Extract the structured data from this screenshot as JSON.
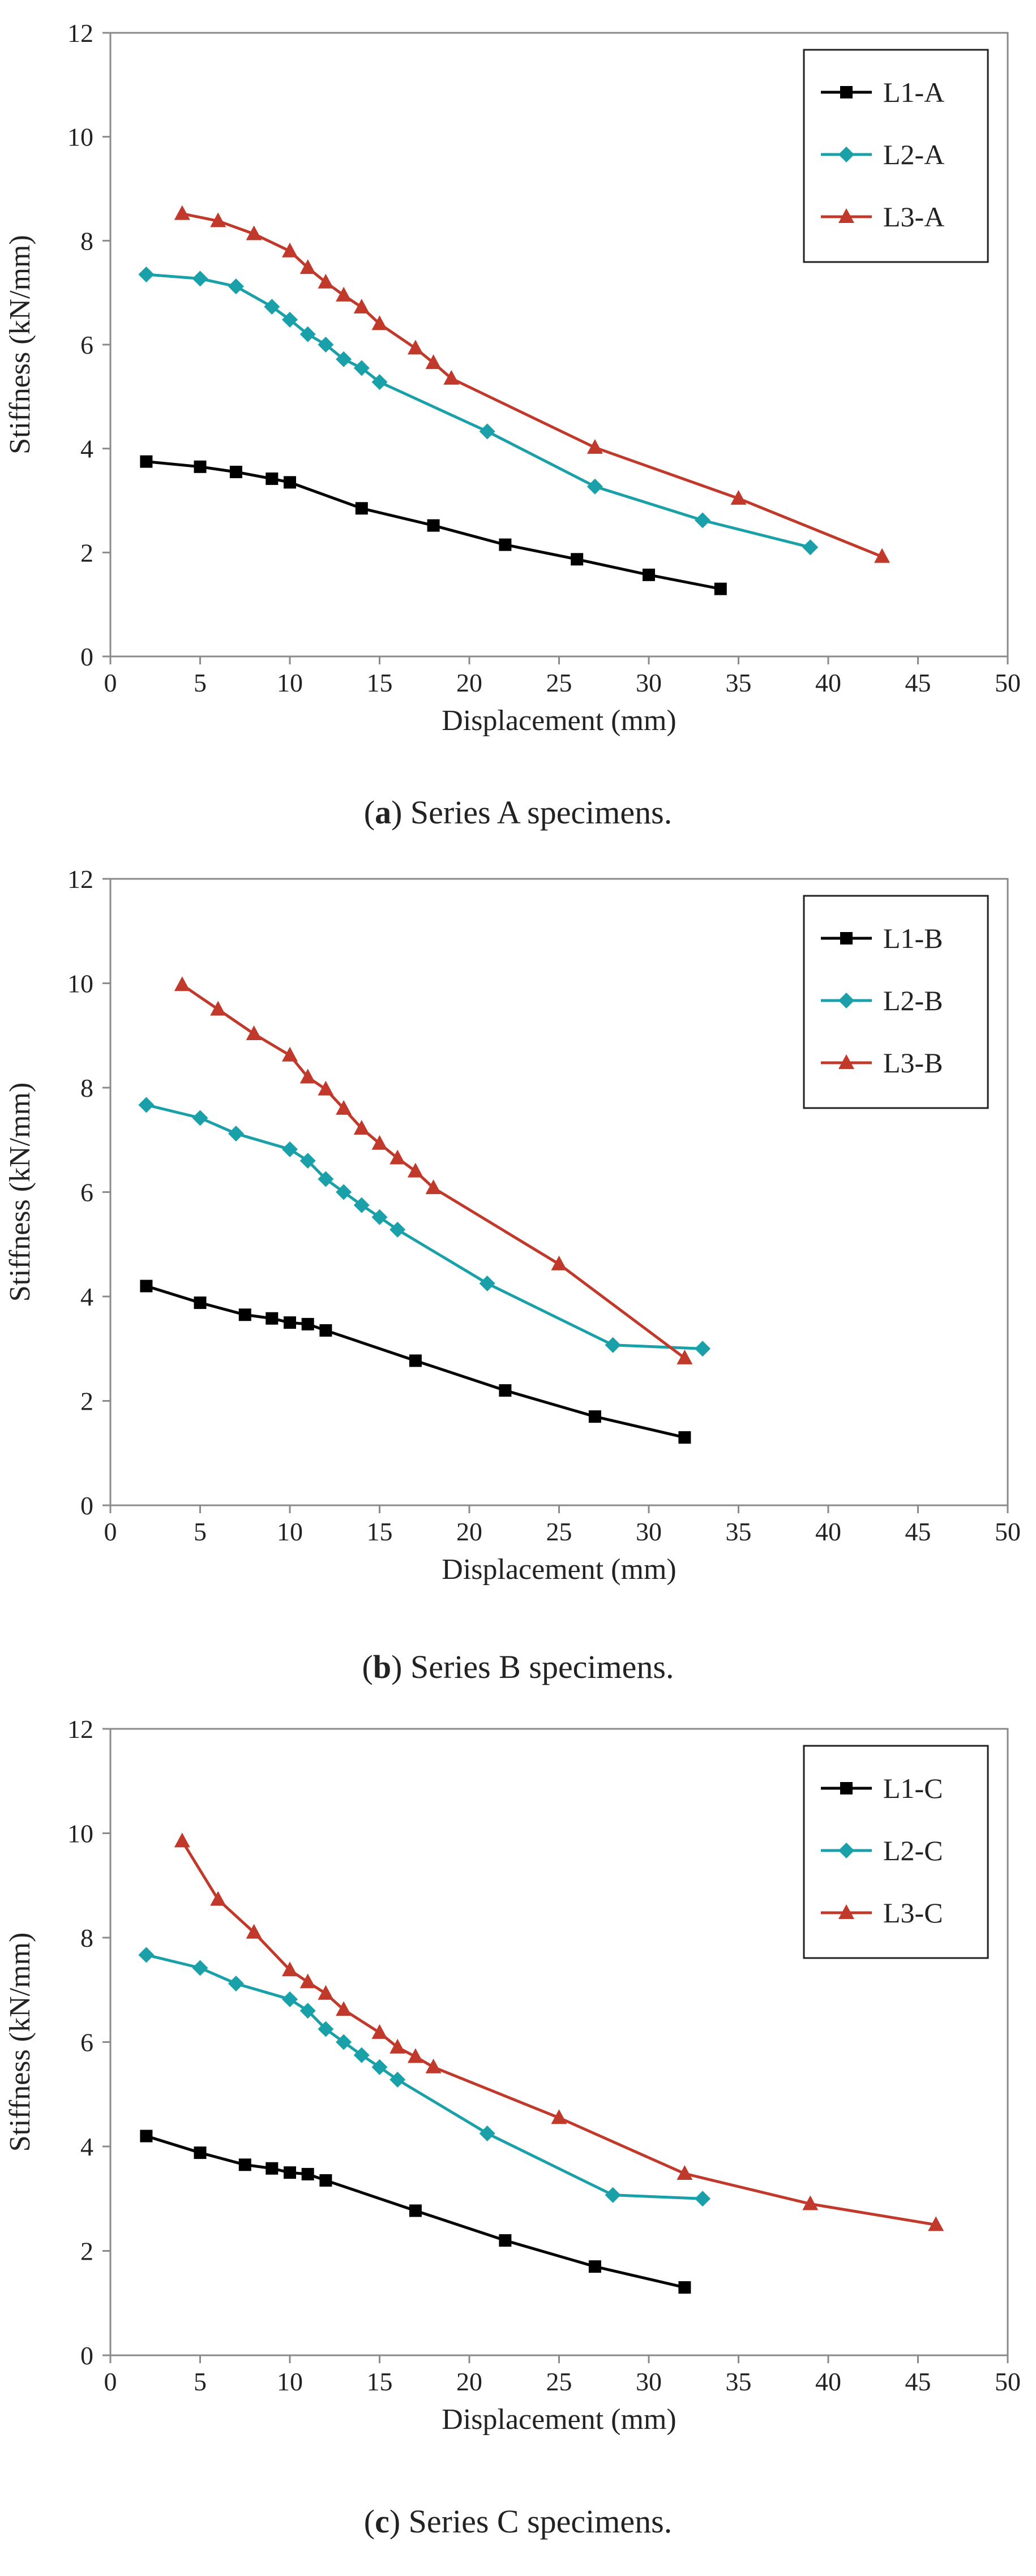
{
  "chart_data": [
    {
      "type": "line",
      "caption_letter": "a",
      "caption_text": ") Series A specimens.",
      "xlabel": "Displacement (mm)",
      "ylabel": "Stiffness (kN/mm)",
      "xlim": [
        0,
        50
      ],
      "ylim": [
        0,
        12
      ],
      "xticks": [
        0,
        5,
        10,
        15,
        20,
        25,
        30,
        35,
        40,
        45,
        50
      ],
      "yticks": [
        0,
        2,
        4,
        6,
        8,
        10,
        12
      ],
      "grid": false,
      "legend_position": "top-right",
      "series": [
        {
          "name": "L1-A",
          "color": "#000000",
          "marker": "square",
          "x": [
            2,
            5,
            7,
            9,
            10,
            14,
            18,
            22,
            26,
            30,
            34
          ],
          "y": [
            3.75,
            3.65,
            3.55,
            3.42,
            3.35,
            2.85,
            2.52,
            2.15,
            1.87,
            1.57,
            1.3
          ]
        },
        {
          "name": "L2-A",
          "color": "#1aa0a8",
          "marker": "diamond",
          "x": [
            2,
            5,
            7,
            9,
            10,
            11,
            12,
            13,
            14,
            15,
            21,
            27,
            33,
            39
          ],
          "y": [
            7.35,
            7.27,
            7.12,
            6.73,
            6.48,
            6.2,
            6.0,
            5.72,
            5.55,
            5.28,
            4.33,
            3.27,
            2.62,
            2.1
          ]
        },
        {
          "name": "L3-A",
          "color": "#c0392b",
          "marker": "triangle",
          "x": [
            4,
            6,
            8,
            10,
            11,
            12,
            13,
            14,
            15,
            17,
            18,
            19,
            27,
            35,
            43
          ],
          "y": [
            8.52,
            8.38,
            8.13,
            7.8,
            7.48,
            7.2,
            6.95,
            6.72,
            6.4,
            5.93,
            5.65,
            5.35,
            4.02,
            3.04,
            1.92
          ]
        }
      ]
    },
    {
      "type": "line",
      "caption_letter": "b",
      "caption_text": ") Series B specimens.",
      "xlabel": "Displacement (mm)",
      "ylabel": "Stiffness (kN/mm)",
      "xlim": [
        0,
        50
      ],
      "ylim": [
        0,
        12
      ],
      "xticks": [
        0,
        5,
        10,
        15,
        20,
        25,
        30,
        35,
        40,
        45,
        50
      ],
      "yticks": [
        0,
        2,
        4,
        6,
        8,
        10,
        12
      ],
      "grid": false,
      "legend_position": "top-right",
      "series": [
        {
          "name": "L1-B",
          "color": "#000000",
          "marker": "square",
          "x": [
            2,
            5,
            7.5,
            9,
            10,
            11,
            12,
            17,
            22,
            27,
            32
          ],
          "y": [
            4.2,
            3.88,
            3.65,
            3.58,
            3.5,
            3.47,
            3.35,
            2.77,
            2.2,
            1.7,
            1.3
          ]
        },
        {
          "name": "L2-B",
          "color": "#1aa0a8",
          "marker": "diamond",
          "x": [
            2,
            5,
            7,
            10,
            11,
            12,
            13,
            14,
            15,
            16,
            21,
            28,
            33
          ],
          "y": [
            7.67,
            7.42,
            7.12,
            6.82,
            6.6,
            6.25,
            6.0,
            5.75,
            5.52,
            5.28,
            4.25,
            3.07,
            3.0
          ]
        },
        {
          "name": "L3-B",
          "color": "#c0392b",
          "marker": "triangle",
          "x": [
            4,
            6,
            8,
            10,
            11,
            12,
            13,
            14,
            15,
            16,
            17,
            18,
            25,
            32
          ],
          "y": [
            9.97,
            9.5,
            9.03,
            8.62,
            8.2,
            7.97,
            7.6,
            7.22,
            6.93,
            6.65,
            6.4,
            6.08,
            4.62,
            2.82
          ]
        }
      ]
    },
    {
      "type": "line",
      "caption_letter": "c",
      "caption_text": ") Series C specimens.",
      "xlabel": "Displacement (mm)",
      "ylabel": "Stiffness (kN/mm)",
      "xlim": [
        0,
        50
      ],
      "ylim": [
        0,
        12
      ],
      "xticks": [
        0,
        5,
        10,
        15,
        20,
        25,
        30,
        35,
        40,
        45,
        50
      ],
      "yticks": [
        0,
        2,
        4,
        6,
        8,
        10,
        12
      ],
      "grid": false,
      "legend_position": "top-right",
      "series": [
        {
          "name": "L1-C",
          "color": "#000000",
          "marker": "square",
          "x": [
            2,
            5,
            7.5,
            9,
            10,
            11,
            12,
            17,
            22,
            27,
            32
          ],
          "y": [
            4.2,
            3.88,
            3.65,
            3.58,
            3.5,
            3.47,
            3.35,
            2.77,
            2.2,
            1.7,
            1.3
          ]
        },
        {
          "name": "L2-C",
          "color": "#1aa0a8",
          "marker": "diamond",
          "x": [
            2,
            5,
            7,
            10,
            11,
            12,
            13,
            14,
            15,
            16,
            21,
            28,
            33
          ],
          "y": [
            7.67,
            7.42,
            7.12,
            6.82,
            6.6,
            6.25,
            6.0,
            5.75,
            5.52,
            5.28,
            4.25,
            3.07,
            3.0
          ]
        },
        {
          "name": "L3-C",
          "color": "#c0392b",
          "marker": "triangle",
          "x": [
            4,
            6,
            8,
            10,
            11,
            12,
            13,
            15,
            16,
            17,
            18,
            25,
            32,
            39,
            46
          ],
          "y": [
            9.85,
            8.73,
            8.1,
            7.38,
            7.15,
            6.93,
            6.62,
            6.18,
            5.9,
            5.72,
            5.52,
            4.55,
            3.48,
            2.9,
            2.5
          ]
        }
      ]
    }
  ]
}
